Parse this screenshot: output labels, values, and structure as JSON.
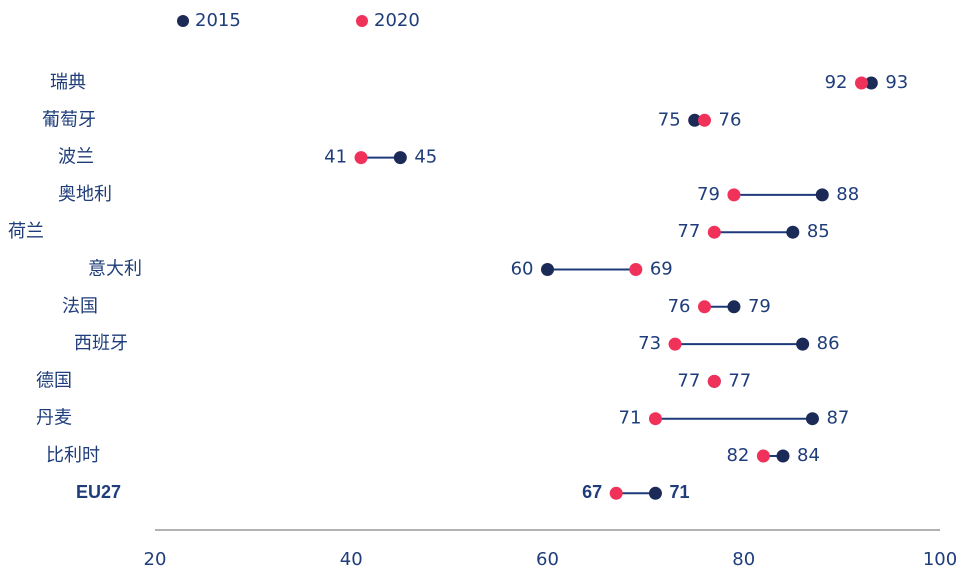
{
  "chart_data": {
    "type": "dumbbell",
    "categories": [
      "瑞典",
      "葡萄牙",
      "波兰",
      "奥地利",
      "荷兰",
      "意大利",
      "法国",
      "西班牙",
      "德国",
      "丹麦",
      "比利时",
      "EU27"
    ],
    "series": [
      {
        "name": "2015",
        "color": "#1b2a56",
        "values": [
          93,
          75,
          45,
          88,
          85,
          60,
          79,
          86,
          77,
          87,
          84,
          71
        ]
      },
      {
        "name": "2020",
        "color": "#f0325a",
        "values": [
          92,
          76,
          41,
          79,
          77,
          69,
          76,
          73,
          77,
          71,
          82,
          67
        ]
      }
    ],
    "connector_color": "#1f3a7a",
    "xlim": [
      20,
      100
    ],
    "xticks": [
      20,
      40,
      60,
      80,
      100
    ]
  }
}
